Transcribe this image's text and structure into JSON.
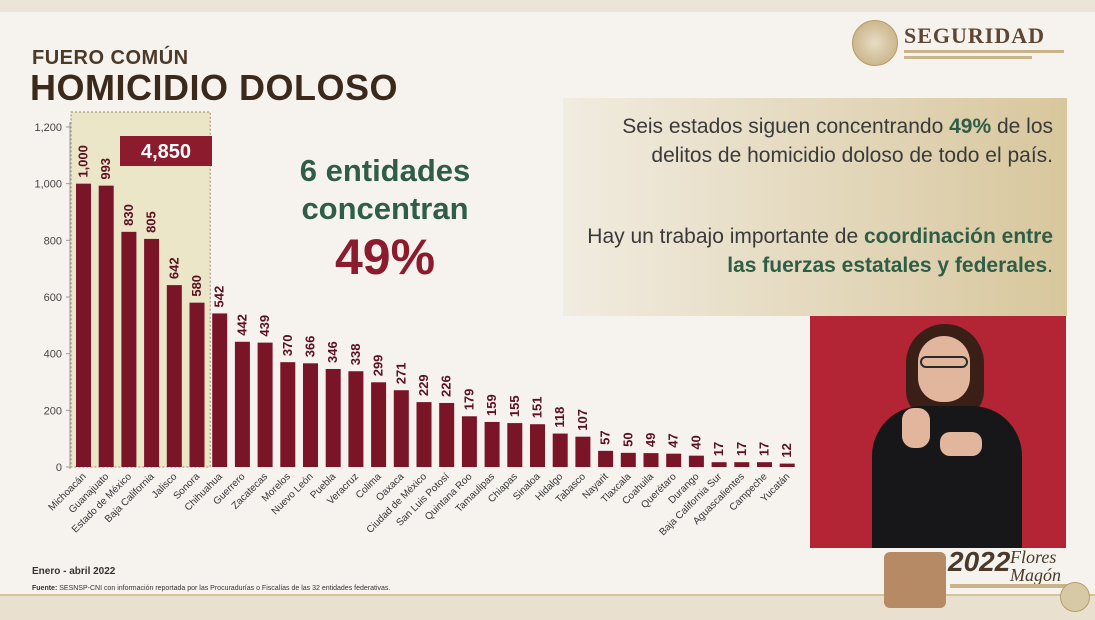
{
  "header": {
    "subtitle": "FUERO COMÚN",
    "title": "HOMICIDIO DOLOSO"
  },
  "logo": {
    "name": "SEGURIDAD",
    "icon": "seal-icon"
  },
  "highlight": {
    "total_label": "4,850",
    "line1": "6 entidades",
    "line2": "concentran",
    "percent": "49%"
  },
  "info": {
    "p1_pre": "Seis estados siguen concentrando ",
    "p1_bold": "49%",
    "p1_post": " de los delitos de homicidio doloso de todo el país.",
    "p2_pre": "Hay un trabajo importante de ",
    "p2_bold": "coordinación entre las fuerzas estatales y federales",
    "p2_post": "."
  },
  "footer": {
    "period": "Enero - abril 2022",
    "source_label": "Fuente:",
    "source_text": " SESNSP-CNI con información reportada por las Procuradurías o Fiscalías de las 32 entidades federativas."
  },
  "anniversary": {
    "year": "2022",
    "name1": "Flores",
    "name2": "Magón"
  },
  "colors": {
    "bar": "#7a1528",
    "highlight_box": "#8c1b2e",
    "green": "#2f5d46",
    "interpreter_bg": "#b32435"
  },
  "chart_data": {
    "type": "bar",
    "title": "HOMICIDIO DOLOSO",
    "xlabel": "",
    "ylabel": "",
    "ylim": [
      0,
      1200
    ],
    "yticks": [
      0,
      200,
      400,
      600,
      800,
      1000,
      1200
    ],
    "ytick_labels": [
      "0",
      "200",
      "400",
      "600",
      "800",
      "1,000",
      "1,200"
    ],
    "grid": false,
    "categories": [
      "Michoacán",
      "Guanajuato",
      "Estado de México",
      "Baja California",
      "Jalisco",
      "Sonora",
      "Chihuahua",
      "Guerrero",
      "Zacatecas",
      "Morelos",
      "Nuevo León",
      "Puebla",
      "Veracruz",
      "Colima",
      "Oaxaca",
      "Ciudad de México",
      "San Luis Potosí",
      "Quintana Roo",
      "Tamaulipas",
      "Chiapas",
      "Sinaloa",
      "Hidalgo",
      "Tabasco",
      "Nayarit",
      "Tlaxcala",
      "Coahuila",
      "Querétaro",
      "Durango",
      "Baja California Sur",
      "Aguascalientes",
      "Campeche",
      "Yucatán"
    ],
    "values": [
      1000,
      993,
      830,
      805,
      642,
      580,
      542,
      442,
      439,
      370,
      366,
      346,
      338,
      299,
      271,
      229,
      226,
      179,
      159,
      155,
      151,
      118,
      107,
      57,
      50,
      49,
      47,
      40,
      17,
      17,
      17,
      12
    ],
    "value_labels": [
      "1,000",
      "993",
      "830",
      "805",
      "642",
      "580",
      "542",
      "442",
      "439",
      "370",
      "366",
      "346",
      "338",
      "299",
      "271",
      "229",
      "226",
      "179",
      "159",
      "155",
      "151",
      "118",
      "107",
      "57",
      "50",
      "49",
      "47",
      "40",
      "17",
      "17",
      "17",
      "12"
    ],
    "highlighted_count": 6,
    "highlighted_total": "4,850"
  }
}
